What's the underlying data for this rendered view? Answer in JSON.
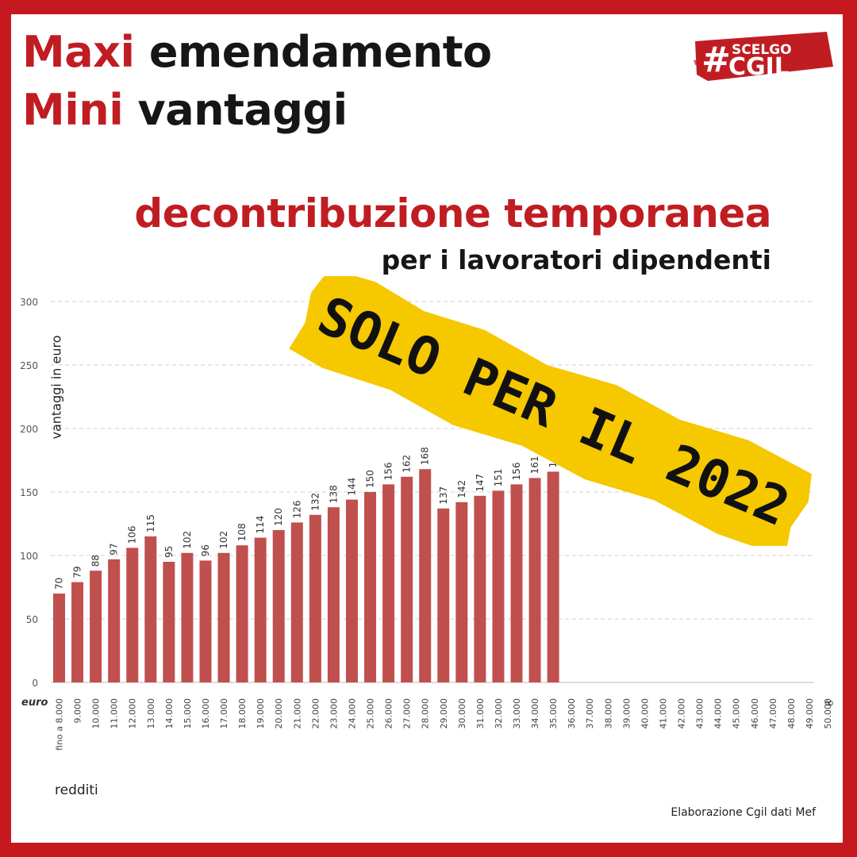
{
  "headline": {
    "line1_red": "Maxi",
    "line1_black": " emendamento",
    "line2_red": "Mini",
    "line2_black": " vantaggi"
  },
  "subtitle": "decontribuzione temporanea",
  "subtitle2": "per i lavoratori dipendenti",
  "logo": {
    "hash": "#",
    "top": "SCELGO",
    "bottom": "CGIL"
  },
  "stamp_text": "SOLO PER IL 2022",
  "x_unit_label": "euro",
  "x_end_label": "∞",
  "source": "Elaborazione Cgil dati Mef",
  "colors": {
    "accent": "#c01d22",
    "bar": "#c0504d",
    "stamp": "#f5c800"
  },
  "chart_data": {
    "type": "bar",
    "xlabel": "redditi",
    "ylabel": "vantaggi in euro",
    "ylim": [
      0,
      300
    ],
    "yticks": [
      0,
      50,
      100,
      150,
      200,
      250,
      300
    ],
    "grid": true,
    "categories": [
      "fino a 8.000",
      "9.000",
      "10.000",
      "11.000",
      "12.000",
      "13.000",
      "14.000",
      "15.000",
      "16.000",
      "17.000",
      "18.000",
      "19.000",
      "20.000",
      "21.000",
      "22.000",
      "23.000",
      "24.000",
      "25.000",
      "26.000",
      "27.000",
      "28.000",
      "29.000",
      "30.000",
      "31.000",
      "32.000",
      "33.000",
      "34.000",
      "35.000",
      "36.000",
      "37.000",
      "38.000",
      "39.000",
      "40.000",
      "41.000",
      "42.000",
      "43.000",
      "44.000",
      "45.000",
      "46.000",
      "47.000",
      "48.000",
      "49.000",
      "50.000"
    ],
    "values": [
      70,
      79,
      88,
      97,
      106,
      115,
      95,
      102,
      96,
      102,
      108,
      114,
      120,
      126,
      132,
      138,
      144,
      150,
      156,
      162,
      168,
      137,
      142,
      147,
      151,
      156,
      161,
      166,
      null,
      null,
      null,
      null,
      null,
      null,
      null,
      null,
      null,
      null,
      null,
      null,
      null,
      null,
      null
    ]
  }
}
